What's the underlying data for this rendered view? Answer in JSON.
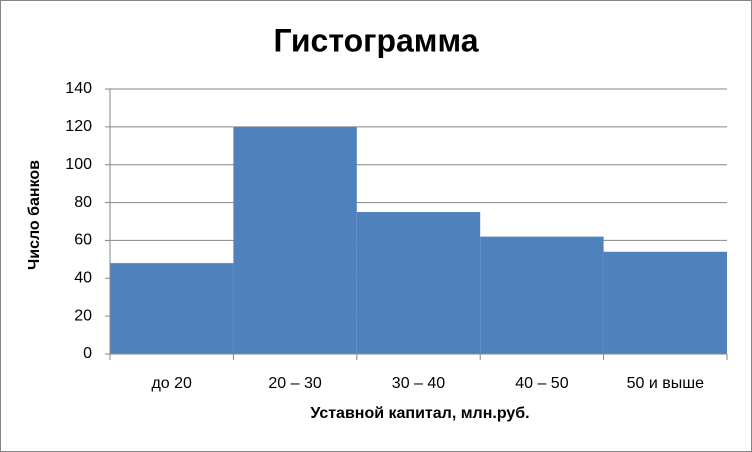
{
  "chart_data": {
    "type": "bar",
    "title": "Гистограмма",
    "x_label": "Уставной капитал, млн.руб.",
    "y_label": "Число банков",
    "categories": [
      "до 20",
      "20 – 30",
      "30 – 40",
      "40 – 50",
      "50 и выше"
    ],
    "values": [
      48,
      120,
      75,
      62,
      54
    ],
    "color": "#4f81bd",
    "ylim": [
      0,
      140
    ],
    "yticks": [
      0,
      20,
      40,
      60,
      80,
      100,
      120,
      140
    ],
    "grid": true
  }
}
